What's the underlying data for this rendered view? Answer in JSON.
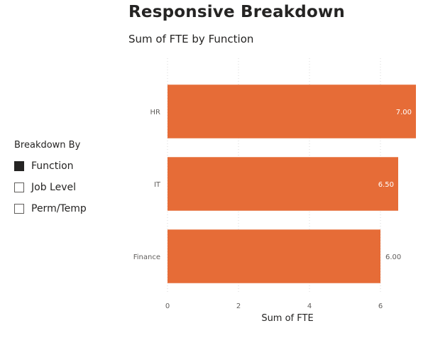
{
  "page": {
    "title": "Responsive Breakdown"
  },
  "slicer": {
    "header": "Breakdown By",
    "items": [
      {
        "label": "Function",
        "checked": true
      },
      {
        "label": "Job Level",
        "checked": false
      },
      {
        "label": "Perm/Temp",
        "checked": false
      }
    ]
  },
  "chart_data": {
    "type": "bar",
    "orientation": "horizontal",
    "title": "Sum of FTE by Function",
    "xlabel": "Sum of FTE",
    "ylabel": "",
    "categories": [
      "HR",
      "IT",
      "Finance"
    ],
    "values": [
      7.0,
      6.5,
      6.0
    ],
    "data_labels": [
      "7.00",
      "6.50",
      "6.00"
    ],
    "xlim": [
      0,
      7
    ],
    "xticks": [
      0,
      2,
      4,
      6
    ],
    "grid": true,
    "bar_color": "#E66C37"
  }
}
